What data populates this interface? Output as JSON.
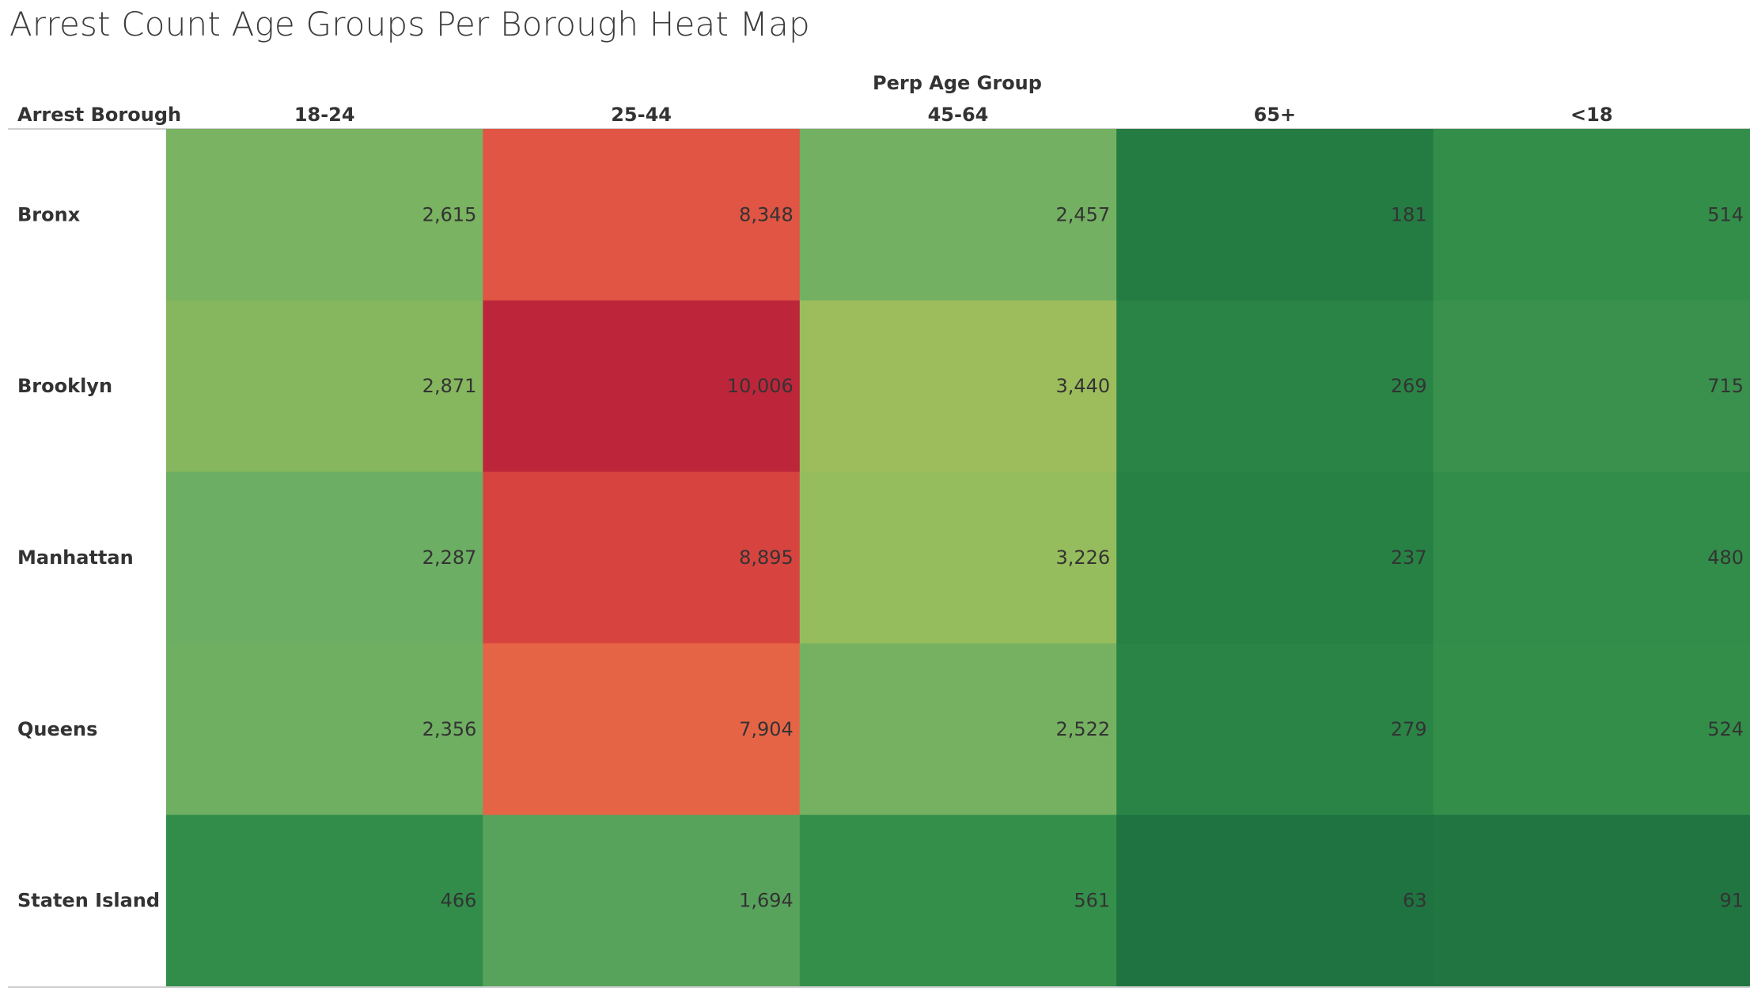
{
  "chart_data": {
    "type": "heatmap",
    "title": "Arrest Count Age Groups Per Borough Heat Map",
    "column_header": "Perp Age Group",
    "row_header": "Arrest Borough",
    "columns": [
      "18-24",
      "25-44",
      "45-64",
      "65+",
      "<18"
    ],
    "rows": [
      "Bronx",
      "Brooklyn",
      "Manhattan",
      "Queens",
      "Staten Island"
    ],
    "values": [
      [
        2615,
        8348,
        2457,
        181,
        514
      ],
      [
        2871,
        10006,
        3440,
        269,
        715
      ],
      [
        2287,
        8895,
        3226,
        237,
        480
      ],
      [
        2356,
        7904,
        2522,
        279,
        524
      ],
      [
        466,
        1694,
        561,
        63,
        91
      ]
    ],
    "value_labels": [
      [
        "2,615",
        "8,348",
        "2,457",
        "181",
        "514"
      ],
      [
        "2,871",
        "10,006",
        "3,440",
        "269",
        "715"
      ],
      [
        "2,287",
        "8,895",
        "3,226",
        "237",
        "480"
      ],
      [
        "2,356",
        "7,904",
        "2,522",
        "279",
        "524"
      ],
      [
        "466",
        "1,694",
        "561",
        "63",
        "91"
      ]
    ],
    "color_scale": "red-green diverging",
    "color_range": [
      63,
      10006
    ],
    "color_stops": [
      "#1e7340",
      "#2e8b48",
      "#6aad63",
      "#9bbf5c",
      "#e96a48",
      "#d9463f",
      "#bd263a"
    ]
  }
}
